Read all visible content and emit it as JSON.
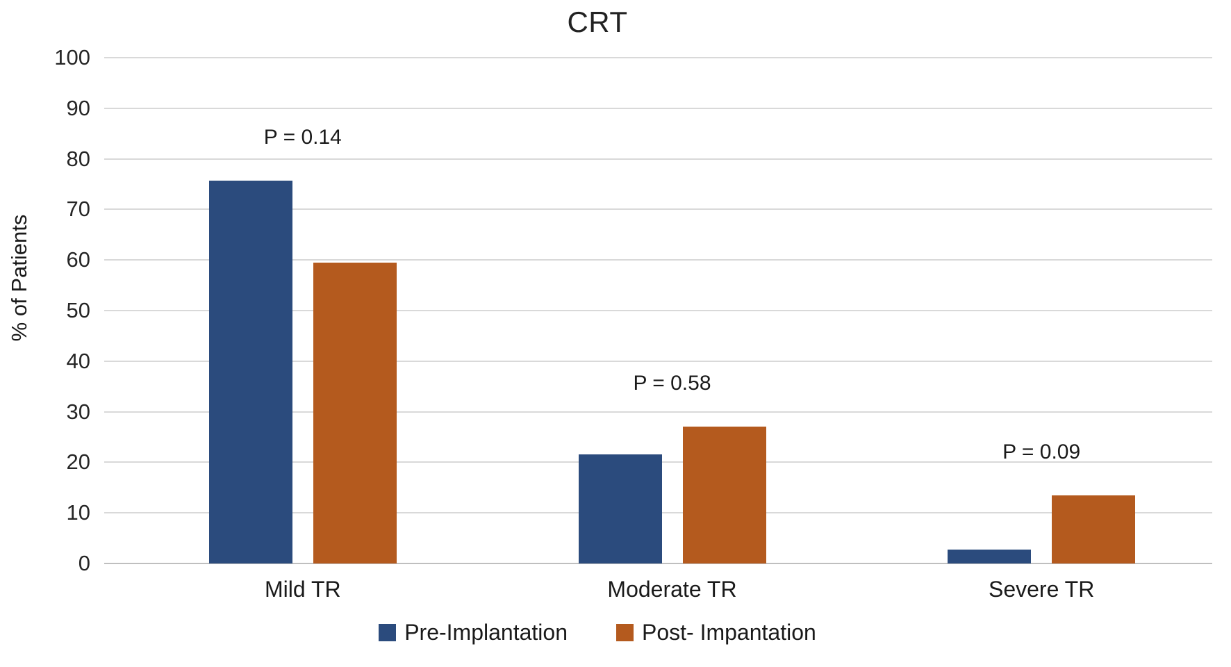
{
  "chart_data": {
    "type": "bar",
    "title": "CRT",
    "xlabel": "",
    "ylabel": "% of Patients",
    "ylim": [
      0,
      100
    ],
    "ytick_step": 10,
    "yticks": [
      0,
      10,
      20,
      30,
      40,
      50,
      60,
      70,
      80,
      90,
      100
    ],
    "grid": "horizontal",
    "legend_position": "bottom",
    "categories": [
      "Mild TR",
      "Moderate TR",
      "Severe TR"
    ],
    "series": [
      {
        "name": "Pre-Implantation",
        "color": "#2B4B7D",
        "values": [
          75.7,
          21.6,
          2.7
        ]
      },
      {
        "name": "Post- Impantation",
        "color": "#B45A1E",
        "values": [
          59.5,
          27.0,
          13.5
        ]
      }
    ],
    "annotations": [
      {
        "category": "Mild TR",
        "label": "P = 0.14"
      },
      {
        "category": "Moderate TR",
        "label": "P = 0.58"
      },
      {
        "category": "Severe TR",
        "label": "P = 0.09"
      }
    ],
    "colors": {
      "gridline": "#d9d9d9",
      "axis_line": "#bfbfbf",
      "text": "#262626"
    }
  }
}
